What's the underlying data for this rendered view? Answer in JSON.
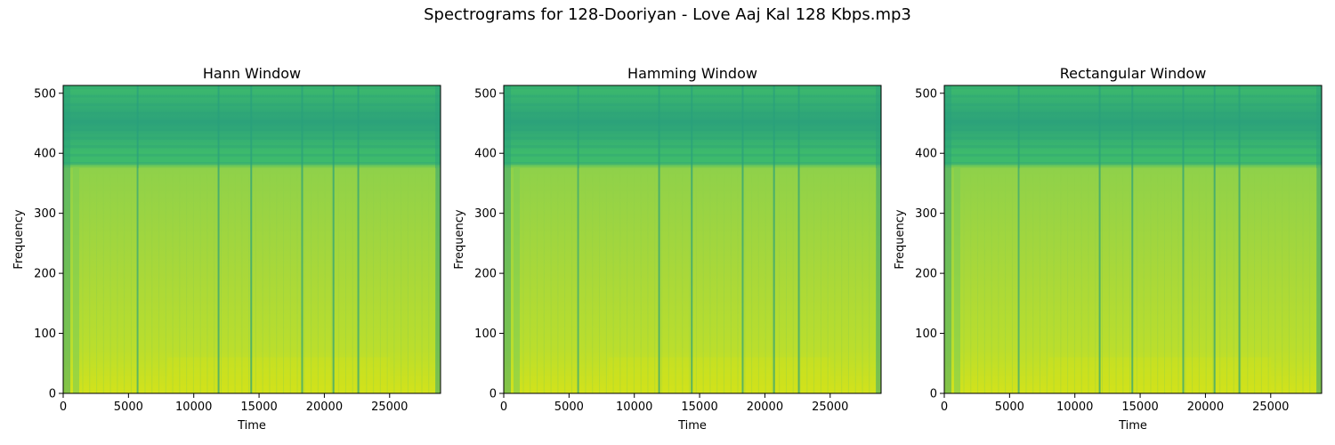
{
  "suptitle": "Spectrograms for 128-Dooriyan - Love Aaj Kal 128 Kbps.mp3",
  "chart_data": [
    {
      "type": "heatmap",
      "title": "Hann Window",
      "xlabel": "Time",
      "ylabel": "Frequency",
      "xlim": [
        0,
        28900
      ],
      "ylim": [
        0,
        513
      ],
      "xticks": [
        0,
        5000,
        10000,
        15000,
        20000,
        25000
      ],
      "yticks": [
        0,
        100,
        200,
        300,
        400,
        500
      ],
      "colormap": "viridis",
      "band_edge_frequency": 375,
      "dark_vertical_lines_time": [
        5700,
        11900,
        14400,
        18300,
        20700,
        22600
      ],
      "bright_region_frequency_max": 60
    },
    {
      "type": "heatmap",
      "title": "Hamming Window",
      "xlabel": "Time",
      "ylabel": "Frequency",
      "xlim": [
        0,
        28900
      ],
      "ylim": [
        0,
        513
      ],
      "xticks": [
        0,
        5000,
        10000,
        15000,
        20000,
        25000
      ],
      "yticks": [
        0,
        100,
        200,
        300,
        400,
        500
      ],
      "colormap": "viridis",
      "band_edge_frequency": 375,
      "dark_vertical_lines_time": [
        5700,
        11900,
        14400,
        18300,
        20700,
        22600
      ],
      "bright_region_frequency_max": 60
    },
    {
      "type": "heatmap",
      "title": "Rectangular Window",
      "xlabel": "Time",
      "ylabel": "Frequency",
      "xlim": [
        0,
        28900
      ],
      "ylim": [
        0,
        513
      ],
      "xticks": [
        0,
        5000,
        10000,
        15000,
        20000,
        25000
      ],
      "yticks": [
        0,
        100,
        200,
        300,
        400,
        500
      ],
      "colormap": "viridis",
      "band_edge_frequency": 375,
      "dark_vertical_lines_time": [
        5700,
        11900,
        14400,
        18300,
        20700,
        22600
      ],
      "bright_region_frequency_max": 60
    }
  ],
  "colors": {
    "upper_band_dark": "#2ca27a",
    "upper_band_mid": "#3dba6c",
    "lower_band": "#a8d83a",
    "lower_band_bright": "#d2e21b",
    "dark_line": "#5cc45e",
    "edge_dark": "#29a07c"
  }
}
